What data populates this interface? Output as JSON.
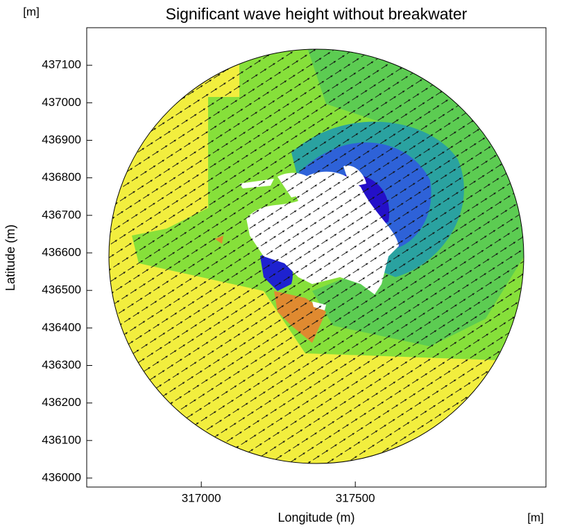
{
  "chart_data": {
    "type": "field-map",
    "title": "Significant wave height without breakwater",
    "x_label": "Longitude (m)",
    "y_label": "Latitude (m)",
    "x_unit": "[m]",
    "y_unit": "[m]",
    "xlim": [
      316628,
      318119
    ],
    "ylim": [
      435976,
      437200
    ],
    "xticks": [
      317000,
      317500
    ],
    "yticks": [
      436000,
      436100,
      436200,
      436300,
      436400,
      436500,
      436600,
      436700,
      436800,
      436900,
      437000,
      437100
    ]
  }
}
